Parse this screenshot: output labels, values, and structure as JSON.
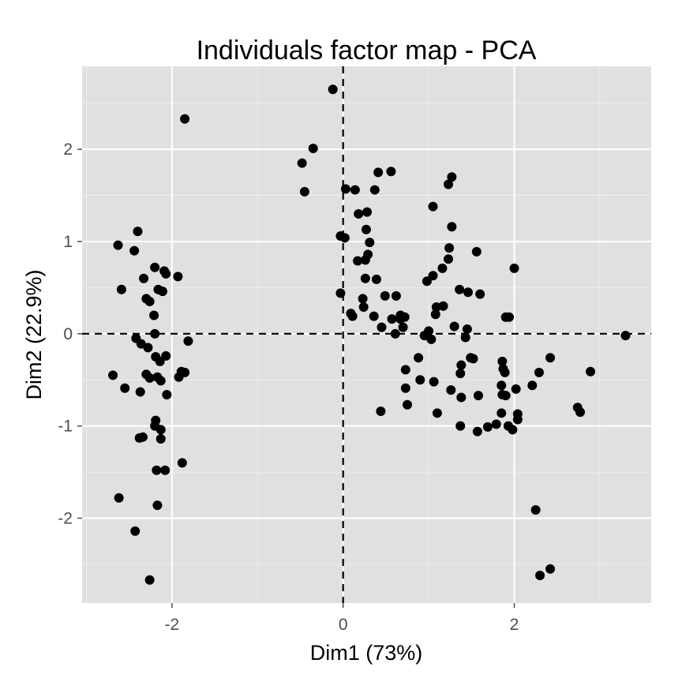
{
  "chart_data": {
    "type": "scatter",
    "title": "Individuals factor map - PCA",
    "xlabel": "Dim1 (73%)",
    "ylabel": "Dim2 (22.9%)",
    "xlim": [
      -3.05,
      3.6
    ],
    "ylim": [
      -2.92,
      2.9
    ],
    "x_ticks": [
      -2,
      0,
      2
    ],
    "x_tick_labels": [
      "-2",
      "0",
      "2"
    ],
    "y_ticks": [
      -2,
      -1,
      0,
      1,
      2
    ],
    "y_tick_labels": [
      "-2",
      "-1",
      "0",
      "1",
      "2"
    ],
    "reference_lines": {
      "x": 0,
      "y": 0,
      "style": "dashed"
    },
    "grid": true,
    "colors": {
      "panel": "#e0e0e0",
      "grid": "#ffffff",
      "points": "#000000"
    },
    "points": [
      [
        -2.69,
        -0.45
      ],
      [
        -2.63,
        0.96
      ],
      [
        -2.59,
        0.48
      ],
      [
        -2.55,
        -0.59
      ],
      [
        -2.44,
        0.9
      ],
      [
        -2.4,
        1.11
      ],
      [
        -2.33,
        0.6
      ],
      [
        -2.3,
        0.38
      ],
      [
        -2.26,
        0.35
      ],
      [
        -2.2,
        0.72
      ],
      [
        -2.16,
        0.48
      ],
      [
        -2.11,
        0.46
      ],
      [
        -2.09,
        0.68
      ],
      [
        -2.07,
        0.65
      ],
      [
        -2.21,
        0.2
      ],
      [
        -2.42,
        -0.05
      ],
      [
        -2.36,
        -0.11
      ],
      [
        -2.28,
        -0.15
      ],
      [
        -2.2,
        0.0
      ],
      [
        -2.19,
        -0.25
      ],
      [
        -2.14,
        -0.3
      ],
      [
        -2.07,
        -0.24
      ],
      [
        -1.93,
        0.62
      ],
      [
        -1.81,
        -0.08
      ],
      [
        -2.3,
        -0.44
      ],
      [
        -2.26,
        -0.48
      ],
      [
        -2.17,
        -0.47
      ],
      [
        -2.13,
        -0.51
      ],
      [
        -1.92,
        -0.47
      ],
      [
        -1.85,
        -0.42
      ],
      [
        -1.89,
        -0.41
      ],
      [
        -2.37,
        -0.63
      ],
      [
        -2.06,
        -0.66
      ],
      [
        -2.19,
        -0.94
      ],
      [
        -2.2,
        -1.0
      ],
      [
        -2.13,
        -1.04
      ],
      [
        -2.38,
        -1.13
      ],
      [
        -2.34,
        -1.12
      ],
      [
        -2.13,
        -1.14
      ],
      [
        -1.88,
        -1.4
      ],
      [
        -2.18,
        -1.48
      ],
      [
        -2.08,
        -1.48
      ],
      [
        -2.62,
        -1.78
      ],
      [
        -2.17,
        -1.86
      ],
      [
        -2.43,
        -2.14
      ],
      [
        -2.26,
        -2.67
      ],
      [
        -1.85,
        2.33
      ],
      [
        -0.12,
        2.65
      ],
      [
        -0.35,
        2.01
      ],
      [
        -0.48,
        1.85
      ],
      [
        -0.45,
        1.54
      ],
      [
        0.03,
        1.57
      ],
      [
        0.14,
        1.56
      ],
      [
        0.37,
        1.56
      ],
      [
        0.41,
        1.75
      ],
      [
        0.56,
        1.76
      ],
      [
        0.18,
        1.3
      ],
      [
        0.28,
        1.32
      ],
      [
        0.27,
        1.13
      ],
      [
        0.31,
        0.99
      ],
      [
        -0.03,
        1.06
      ],
      [
        0.02,
        1.04
      ],
      [
        0.17,
        0.79
      ],
      [
        0.26,
        0.8
      ],
      [
        0.29,
        0.86
      ],
      [
        0.26,
        0.6
      ],
      [
        0.39,
        0.59
      ],
      [
        -0.03,
        0.44
      ],
      [
        0.09,
        0.22
      ],
      [
        0.11,
        0.19
      ],
      [
        0.23,
        0.38
      ],
      [
        0.24,
        0.29
      ],
      [
        0.36,
        0.19
      ],
      [
        0.49,
        0.41
      ],
      [
        0.62,
        0.41
      ],
      [
        0.45,
        0.07
      ],
      [
        0.57,
        0.16
      ],
      [
        0.61,
        0.0
      ],
      [
        0.67,
        0.2
      ],
      [
        0.72,
        0.18
      ],
      [
        0.7,
        0.07
      ],
      [
        0.67,
        0.16
      ],
      [
        1.0,
        0.03
      ],
      [
        1.03,
        -0.06
      ],
      [
        0.95,
        -0.02
      ],
      [
        0.98,
        0.57
      ],
      [
        1.05,
        0.63
      ],
      [
        1.16,
        0.71
      ],
      [
        1.23,
        0.81
      ],
      [
        1.24,
        0.93
      ],
      [
        1.27,
        1.16
      ],
      [
        1.23,
        1.62
      ],
      [
        1.27,
        1.7
      ],
      [
        1.05,
        1.38
      ],
      [
        1.09,
        0.29
      ],
      [
        1.08,
        0.21
      ],
      [
        1.17,
        0.3
      ],
      [
        1.3,
        0.08
      ],
      [
        1.36,
        0.48
      ],
      [
        1.46,
        0.45
      ],
      [
        1.56,
        0.89
      ],
      [
        1.6,
        0.43
      ],
      [
        1.45,
        0.05
      ],
      [
        1.43,
        -0.04
      ],
      [
        1.9,
        0.18
      ],
      [
        1.94,
        0.18
      ],
      [
        2.0,
        0.71
      ],
      [
        0.73,
        -0.39
      ],
      [
        0.73,
        -0.59
      ],
      [
        0.75,
        -0.77
      ],
      [
        0.88,
        -0.26
      ],
      [
        0.9,
        -0.5
      ],
      [
        1.06,
        -0.52
      ],
      [
        1.1,
        -0.86
      ],
      [
        1.26,
        -0.61
      ],
      [
        1.38,
        -0.34
      ],
      [
        1.37,
        -0.43
      ],
      [
        1.38,
        -0.69
      ],
      [
        1.37,
        -1.0
      ],
      [
        1.49,
        -0.26
      ],
      [
        1.52,
        -0.27
      ],
      [
        1.58,
        -0.67
      ],
      [
        1.57,
        -1.06
      ],
      [
        1.69,
        -1.01
      ],
      [
        1.79,
        -0.98
      ],
      [
        1.86,
        -0.3
      ],
      [
        1.87,
        -0.38
      ],
      [
        1.89,
        -0.42
      ],
      [
        1.85,
        -0.56
      ],
      [
        1.86,
        -0.66
      ],
      [
        1.9,
        -0.67
      ],
      [
        1.85,
        -0.86
      ],
      [
        1.93,
        -1.0
      ],
      [
        1.98,
        -1.04
      ],
      [
        2.02,
        -0.6
      ],
      [
        2.04,
        -0.87
      ],
      [
        2.04,
        -0.93
      ],
      [
        2.21,
        -0.56
      ],
      [
        2.29,
        -0.42
      ],
      [
        2.42,
        -0.26
      ],
      [
        2.74,
        -0.8
      ],
      [
        2.77,
        -0.85
      ],
      [
        2.89,
        -0.41
      ],
      [
        3.3,
        -0.02
      ],
      [
        0.44,
        -0.84
      ],
      [
        2.25,
        -1.91
      ],
      [
        2.3,
        -2.62
      ],
      [
        2.42,
        -2.55
      ]
    ]
  }
}
